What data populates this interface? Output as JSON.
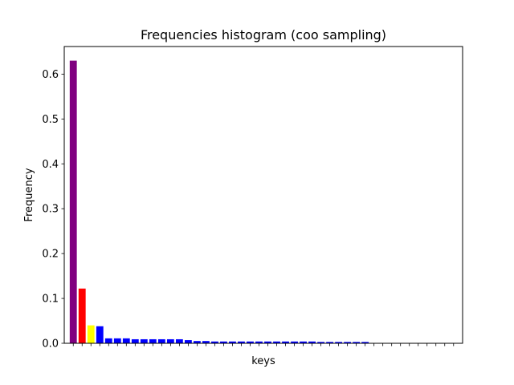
{
  "chart_data": {
    "type": "bar",
    "title": "Frequencies histogram (coo sampling)",
    "xlabel": "keys",
    "ylabel": "Frequency",
    "ylim": [
      0,
      0.6615
    ],
    "yticks": [
      0.0,
      0.1,
      0.2,
      0.3,
      0.4,
      0.5,
      0.6
    ],
    "ytick_labels": [
      "0.0",
      "0.1",
      "0.2",
      "0.3",
      "0.4",
      "0.5",
      "0.6"
    ],
    "x_tick_labels_shown": false,
    "grid": false,
    "legend": "none",
    "values": [
      0.63,
      0.122,
      0.04,
      0.038,
      0.011,
      0.011,
      0.011,
      0.009,
      0.009,
      0.009,
      0.009,
      0.009,
      0.009,
      0.007,
      0.005,
      0.005,
      0.004,
      0.004,
      0.004,
      0.004,
      0.004,
      0.004,
      0.004,
      0.004,
      0.004,
      0.004,
      0.004,
      0.004,
      0.003,
      0.003,
      0.003,
      0.003,
      0.003,
      0.003,
      0.0,
      0.0,
      0.0,
      0.0,
      0.0,
      0.0,
      0.0,
      0.0,
      0.0,
      0.0
    ],
    "colors": [
      "#800080",
      "#ff0000",
      "#ffff00",
      "#0000ff",
      "#0000ff",
      "#0000ff",
      "#0000ff",
      "#0000ff",
      "#0000ff",
      "#0000ff",
      "#0000ff",
      "#0000ff",
      "#0000ff",
      "#0000ff",
      "#0000ff",
      "#0000ff",
      "#0000ff",
      "#0000ff",
      "#0000ff",
      "#0000ff",
      "#0000ff",
      "#0000ff",
      "#0000ff",
      "#0000ff",
      "#0000ff",
      "#0000ff",
      "#0000ff",
      "#0000ff",
      "#0000ff",
      "#0000ff",
      "#0000ff",
      "#0000ff",
      "#0000ff",
      "#0000ff",
      "#0000ff",
      "#0000ff",
      "#0000ff",
      "#0000ff",
      "#0000ff",
      "#0000ff",
      "#0000ff",
      "#0000ff",
      "#0000ff",
      "#0000ff"
    ]
  }
}
